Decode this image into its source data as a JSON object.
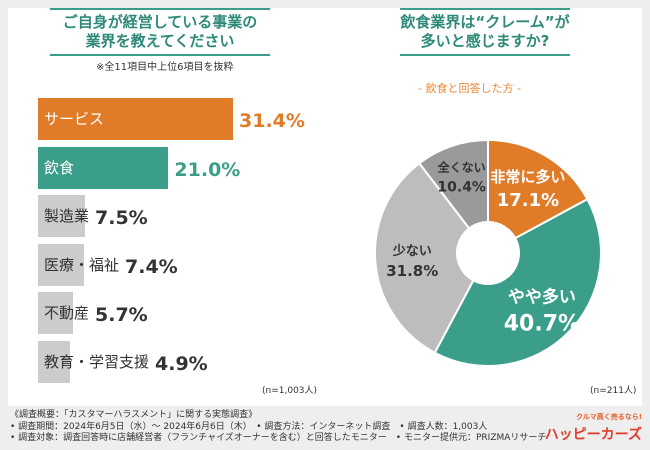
{
  "left": {
    "title_line1": "ご自身が経営している事業の",
    "title_line2": "業界を教えてください",
    "note": "※全11項目中上位6項目を抜粋",
    "n": "(n=1,003人)"
  },
  "right": {
    "title_line1": "飲食業界は“クレーム”が",
    "title_line2": "多いと感じますか?",
    "subtitle": "- 飲食と回答した方 -",
    "n": "(n=211人)"
  },
  "colors": {
    "orange": "#e07b28",
    "teal": "#3a9e8a",
    "gray": "#cccccc",
    "gray_dark": "#9a9a9a",
    "gray_mid": "#bdbdbd"
  },
  "chart_data": [
    {
      "type": "bar",
      "orientation": "horizontal",
      "title": "ご自身が経営している事業の業界を教えてください",
      "categories": [
        "サービス",
        "飲食",
        "製造業",
        "医療・福祉",
        "不動産",
        "教育・学習支援"
      ],
      "values": [
        31.4,
        21.0,
        7.5,
        7.4,
        5.7,
        4.9
      ],
      "value_labels": [
        "31.4%",
        "21.0%",
        "7.5%",
        "7.4%",
        "5.7%",
        "4.9%"
      ],
      "unit": "%"
    },
    {
      "type": "pie",
      "title": "飲食業界は“クレーム”が多いと感じますか?",
      "labels": [
        "非常に多い",
        "やや多い",
        "少ない",
        "全くない"
      ],
      "values": [
        17.1,
        40.7,
        31.8,
        10.4
      ],
      "value_labels": [
        "17.1%",
        "40.7%",
        "31.8%",
        "10.4%"
      ],
      "unit": "%"
    }
  ],
  "footer": {
    "line1": "《調査概要：「カスタマーハラスメント」に関する実態調査》",
    "line2": "• 調査期間：2024年6月5日（水）～ 2024年6月6日（木）　• 調査方法：インターネット調査　• 調査人数：1,003人",
    "line3": "• 調査対象：調査回答時に店舗経営者（フランチャイズオーナーを含む）と回答したモニター　• モニター提供元：PRIZMAリサーチ"
  },
  "logo": {
    "tagline": "クルマ高く売るなら!",
    "name": "ハッピーカーズ"
  }
}
